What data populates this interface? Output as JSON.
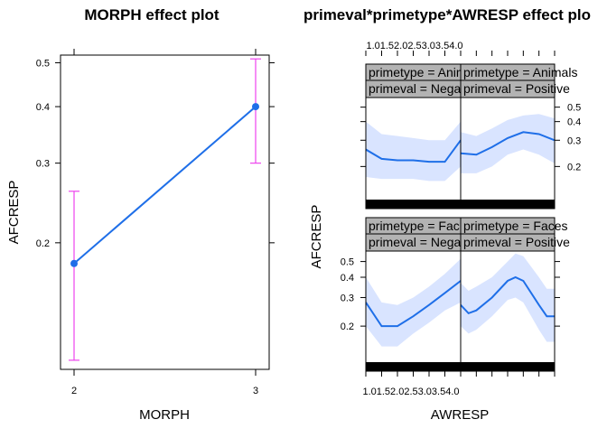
{
  "colors": {
    "line": "#1f6fe8",
    "band": "#d9e4ff",
    "errorbar": "#ee44ee",
    "strip_bg": "#b3b3b3",
    "rug": "#000000"
  },
  "chart_data": [
    {
      "type": "line",
      "title": "MORPH effect plot",
      "xlabel": "MORPH",
      "ylabel": "AFCRESP",
      "x": [
        "2",
        "3"
      ],
      "y": [
        0.18,
        0.4
      ],
      "lower": [
        0.11,
        0.3
      ],
      "upper": [
        0.26,
        0.51
      ],
      "xticks": [
        "2",
        "3"
      ],
      "yticks": [
        "0.2",
        "0.3",
        "0.4",
        "0.5"
      ],
      "ylim": [
        0.105,
        0.52
      ],
      "log_scale_y": true
    },
    {
      "type": "area",
      "title": "primeval*primetype*AWRESP effect plo",
      "xlabel": "AWRESP",
      "ylabel": "AFCRESP",
      "xlim": [
        1.0,
        4.0
      ],
      "xticks_bottom": "1.01.52.02.53.03.54.0",
      "xticks_top": "1.01.52.02.53.03.54.0",
      "yticks_right": [
        "0.2",
        "0.3",
        "0.4",
        "0.5"
      ],
      "yticks_left": [
        "0.2",
        "0.3",
        "0.4",
        "0.5"
      ],
      "ylim": [
        0.12,
        0.58
      ],
      "log_scale_y": true,
      "panels": [
        {
          "strip_primetype": "primetype = Anim",
          "strip_primeval": "primeval = Negat",
          "x": [
            1.0,
            1.5,
            2.0,
            2.5,
            3.0,
            3.5,
            4.0
          ],
          "fit": [
            0.26,
            0.225,
            0.22,
            0.22,
            0.215,
            0.215,
            0.3
          ],
          "lower": [
            0.17,
            0.165,
            0.165,
            0.165,
            0.16,
            0.16,
            0.2
          ],
          "upper": [
            0.4,
            0.33,
            0.32,
            0.31,
            0.3,
            0.3,
            0.4
          ]
        },
        {
          "strip_primetype": "primetype = Animals",
          "strip_primeval": "primeval = Positive",
          "x": [
            1.0,
            1.5,
            2.0,
            2.5,
            3.0,
            3.5,
            4.0
          ],
          "fit": [
            0.245,
            0.24,
            0.27,
            0.31,
            0.34,
            0.33,
            0.3
          ],
          "lower": [
            0.18,
            0.18,
            0.2,
            0.24,
            0.26,
            0.24,
            0.21
          ],
          "upper": [
            0.34,
            0.32,
            0.36,
            0.41,
            0.44,
            0.45,
            0.42
          ]
        },
        {
          "strip_primetype": "primetype = Fac",
          "strip_primeval": "primeval = Negat",
          "x": [
            1.0,
            1.5,
            2.0,
            2.5,
            3.0,
            3.5,
            4.0
          ],
          "fit": [
            0.28,
            0.2,
            0.2,
            0.23,
            0.27,
            0.32,
            0.38
          ],
          "lower": [
            0.2,
            0.15,
            0.15,
            0.18,
            0.21,
            0.25,
            0.28
          ],
          "upper": [
            0.4,
            0.28,
            0.27,
            0.3,
            0.35,
            0.42,
            0.52
          ]
        },
        {
          "strip_primetype": "primetype = Faces",
          "strip_primeval": "primeval = Positive",
          "x": [
            1.0,
            1.25,
            1.5,
            2.0,
            2.5,
            2.75,
            3.0,
            3.5,
            3.75,
            4.0
          ],
          "fit": [
            0.27,
            0.24,
            0.25,
            0.3,
            0.38,
            0.4,
            0.38,
            0.27,
            0.23,
            0.23
          ],
          "lower": [
            0.2,
            0.18,
            0.19,
            0.23,
            0.29,
            0.3,
            0.28,
            0.19,
            0.16,
            0.16
          ],
          "upper": [
            0.37,
            0.33,
            0.35,
            0.4,
            0.5,
            0.56,
            0.54,
            0.4,
            0.34,
            0.34
          ]
        }
      ]
    }
  ]
}
